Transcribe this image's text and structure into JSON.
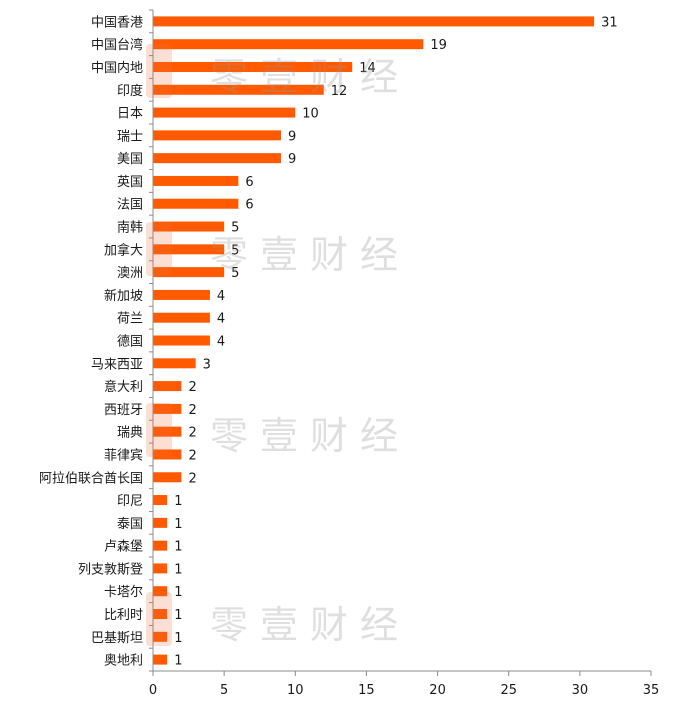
{
  "chart_data": {
    "type": "bar",
    "orientation": "horizontal",
    "categories": [
      "中国香港",
      "中国台湾",
      "中国内地",
      "印度",
      "日本",
      "瑞士",
      "美国",
      "英国",
      "法国",
      "南韩",
      "加拿大",
      "澳洲",
      "新加坡",
      "荷兰",
      "德国",
      "马来西亚",
      "意大利",
      "西班牙",
      "瑞典",
      "菲律宾",
      "阿拉伯联合酋长国",
      "印尼",
      "泰国",
      "卢森堡",
      "列支敦斯登",
      "卡塔尔",
      "比利时",
      "巴基斯坦",
      "奥地利"
    ],
    "values": [
      31,
      19,
      14,
      12,
      10,
      9,
      9,
      6,
      6,
      5,
      5,
      5,
      4,
      4,
      4,
      3,
      2,
      2,
      2,
      2,
      2,
      1,
      1,
      1,
      1,
      1,
      1,
      1,
      1
    ],
    "title": "",
    "xlabel": "",
    "ylabel": "",
    "xlim": [
      0,
      35
    ],
    "xticks": [
      0,
      5,
      10,
      15,
      20,
      25,
      30,
      35
    ],
    "grid": false,
    "legend": "none",
    "bar_color": "#FF5A00",
    "data_labels": true
  },
  "watermark": {
    "text": "零壹财经",
    "color": "#9e9e9e",
    "logo_color": "#F07040"
  }
}
